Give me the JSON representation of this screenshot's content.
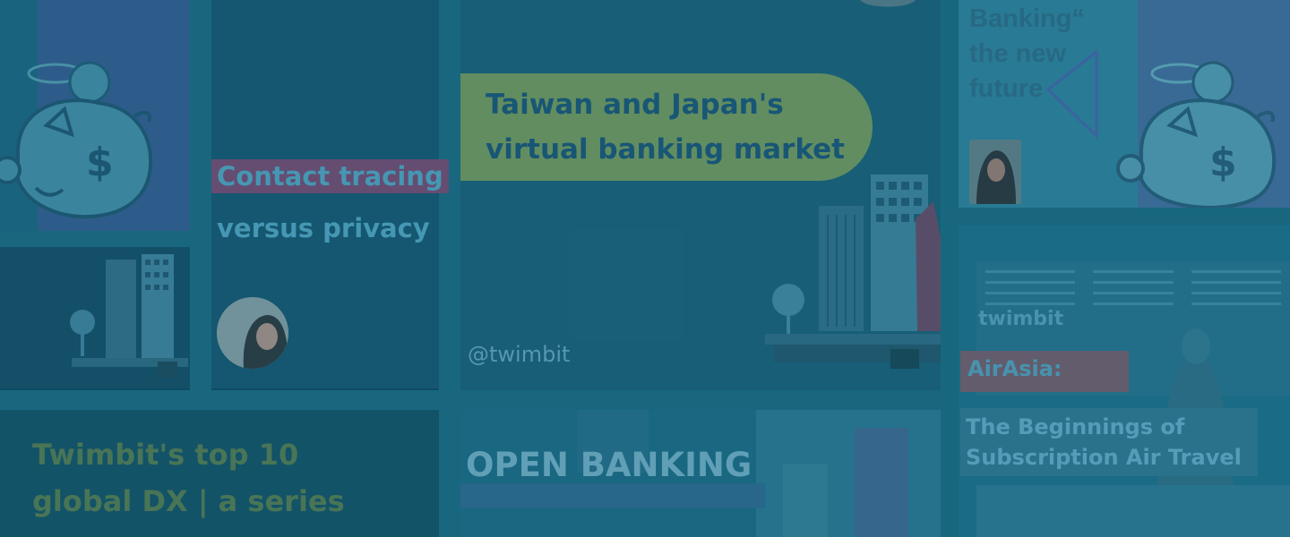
{
  "tiles": {
    "contact_tracing": {
      "line1": "Contact tracing",
      "line2": "versus privacy"
    },
    "taiwan_japan": {
      "line1": "Taiwan and Japan's",
      "line2": "virtual banking market",
      "handle": "@twimbit"
    },
    "banking_future": {
      "line1": "Banking“",
      "line2": "the new",
      "line3": "future"
    },
    "airasia": {
      "logo": "twimbit",
      "tag": "AirAsia:",
      "subtitle_line1": "The Beginnings of",
      "subtitle_line2": "Subscription Air Travel"
    },
    "top10": {
      "line1": "Twimbit's top 10",
      "line2": "global DX | a series"
    },
    "open_banking": {
      "title": "OPEN BANKING"
    }
  },
  "icons": {
    "piggy_bank": "piggy-bank-icon",
    "dollar_sign": "$",
    "city": "city-illustration",
    "triangle": "triangle-outline-icon",
    "avatar": "avatar"
  },
  "colors": {
    "background": "#0f4c62",
    "overlay_teal": "#1a6179",
    "pill_green": "#6a9460",
    "tag_mauve": "#6d4f74",
    "headline_teal": "#4a9fba"
  }
}
